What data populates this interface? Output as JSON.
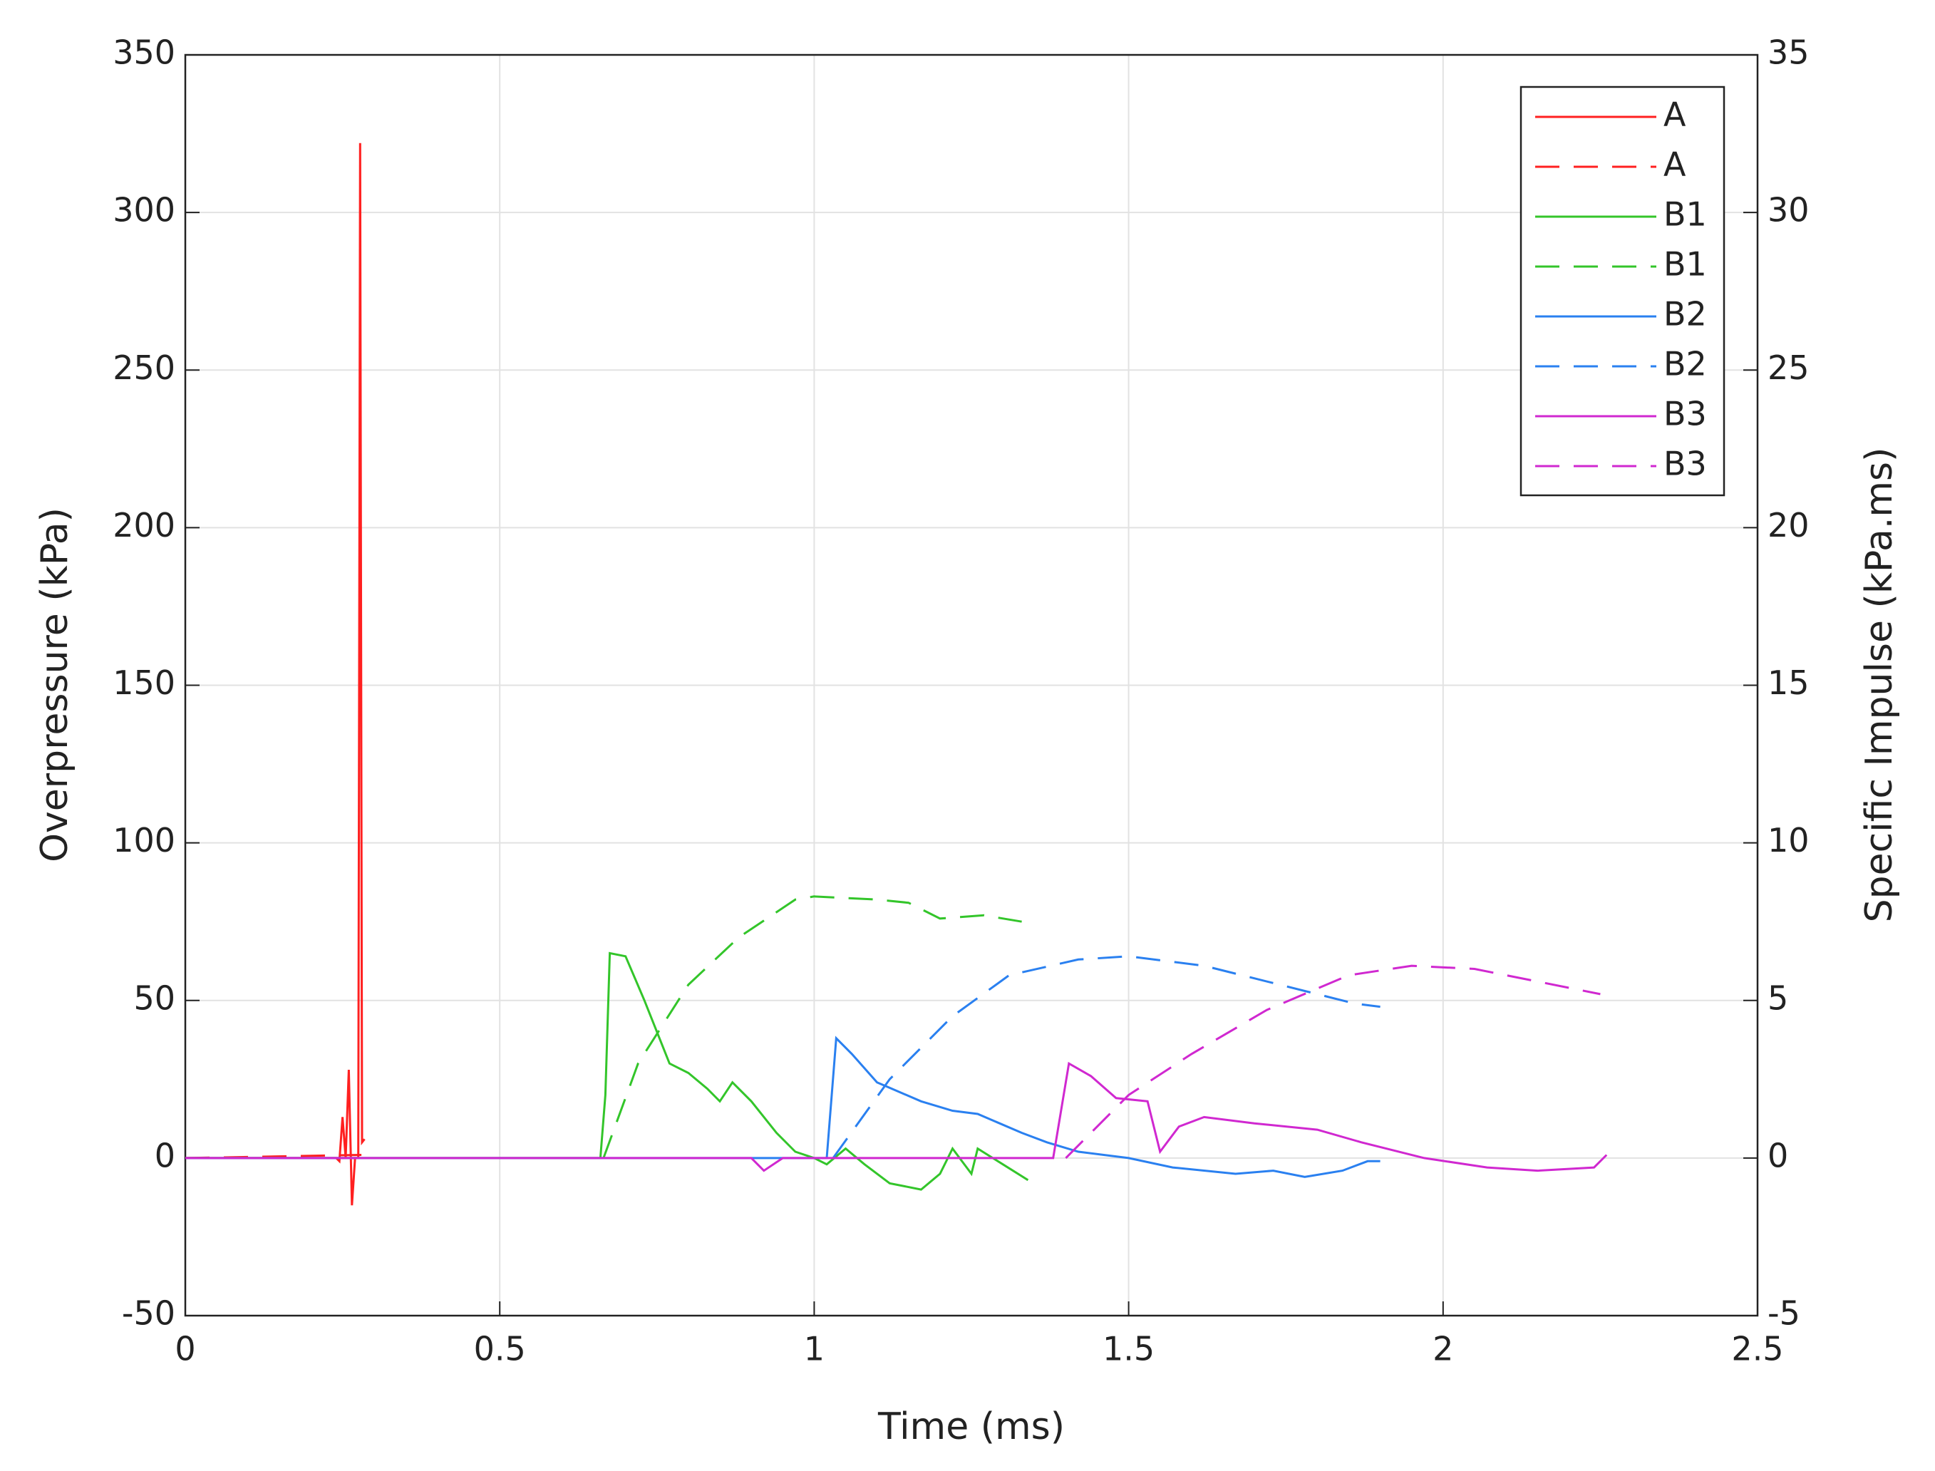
{
  "chart_data": {
    "type": "line",
    "xlabel": "Time (ms)",
    "ylabel": "Overpressure (kPa)",
    "y2label": "Specific Impulse (kPa.ms)",
    "xlim": [
      0,
      2.5
    ],
    "xticks": [
      0,
      0.5,
      1,
      1.5,
      2,
      2.5
    ],
    "ylim": [
      -50,
      350
    ],
    "yticks": [
      -50,
      0,
      50,
      100,
      150,
      200,
      250,
      300,
      350
    ],
    "y2lim": [
      -5,
      35
    ],
    "y2ticks": [
      -5,
      0,
      5,
      10,
      15,
      20,
      25,
      30,
      35
    ],
    "grid": true,
    "legend": "upper right",
    "series": [
      {
        "name": "A",
        "color": "#ff2020",
        "linestyle": "solid",
        "x": [
          0,
          0.24,
          0.245,
          0.25,
          0.255,
          0.26,
          0.265,
          0.27,
          0.275,
          0.278,
          0.281,
          0.285
        ],
        "values": [
          0,
          0,
          -1,
          13,
          0,
          28,
          -15,
          0,
          0,
          322,
          5,
          6
        ]
      },
      {
        "name": "A",
        "color": "#ff2020",
        "linestyle": "dashed",
        "axis": "y2",
        "x": [
          0,
          0.28
        ],
        "values": [
          0,
          0.1
        ]
      },
      {
        "name": "B1",
        "color": "#33c52a",
        "linestyle": "solid",
        "x": [
          0,
          0.66,
          0.668,
          0.675,
          0.7,
          0.73,
          0.77,
          0.8,
          0.83,
          0.85,
          0.87,
          0.9,
          0.94,
          0.97,
          1.0,
          1.02,
          1.05,
          1.08,
          1.12,
          1.17,
          1.2,
          1.22,
          1.25,
          1.26,
          1.3,
          1.34
        ],
        "values": [
          0,
          0,
          20,
          65,
          64,
          50,
          30,
          27,
          22,
          18,
          24,
          18,
          8,
          2,
          0,
          -2,
          3,
          -2,
          -8,
          -10,
          -5,
          3,
          -5,
          3,
          -2,
          -7
        ]
      },
      {
        "name": "B1",
        "color": "#33c52a",
        "linestyle": "dashed",
        "axis": "y2",
        "x": [
          0.665,
          0.72,
          0.8,
          0.88,
          0.97,
          1.0,
          1.1,
          1.15,
          1.2,
          1.27,
          1.33
        ],
        "values": [
          0,
          3,
          5.5,
          7,
          8.2,
          8.3,
          8.2,
          8.1,
          7.6,
          7.7,
          7.5
        ]
      },
      {
        "name": "B2",
        "color": "#2a80f0",
        "linestyle": "solid",
        "x": [
          0,
          1.02,
          1.035,
          1.06,
          1.1,
          1.17,
          1.22,
          1.26,
          1.33,
          1.37,
          1.42,
          1.5,
          1.57,
          1.67,
          1.73,
          1.78,
          1.84,
          1.88,
          1.9
        ],
        "values": [
          0,
          0,
          38,
          33,
          24,
          18,
          15,
          14,
          8,
          5,
          2,
          0,
          -3,
          -5,
          -4,
          -6,
          -4,
          -1,
          -1
        ]
      },
      {
        "name": "B2",
        "color": "#2a80f0",
        "linestyle": "dashed",
        "axis": "y2",
        "x": [
          1.03,
          1.12,
          1.22,
          1.31,
          1.42,
          1.5,
          1.62,
          1.74,
          1.86,
          1.9
        ],
        "values": [
          0,
          2.5,
          4.5,
          5.8,
          6.3,
          6.4,
          6.1,
          5.5,
          4.9,
          4.8
        ]
      },
      {
        "name": "B3",
        "color": "#d028d0",
        "linestyle": "solid",
        "x": [
          0,
          0.9,
          0.92,
          0.95,
          1.38,
          1.405,
          1.44,
          1.48,
          1.53,
          1.55,
          1.58,
          1.62,
          1.7,
          1.8,
          1.87,
          1.97,
          2.07,
          2.15,
          2.24,
          2.26
        ],
        "values": [
          0,
          0,
          -4,
          0,
          0,
          30,
          26,
          19,
          18,
          2,
          10,
          13,
          11,
          9,
          5,
          0,
          -3,
          -4,
          -3,
          1
        ]
      },
      {
        "name": "B3",
        "color": "#d028d0",
        "linestyle": "dashed",
        "axis": "y2",
        "x": [
          1.4,
          1.5,
          1.6,
          1.72,
          1.85,
          1.95,
          2.05,
          2.15,
          2.25
        ],
        "values": [
          0,
          2,
          3.3,
          4.7,
          5.8,
          6.1,
          6,
          5.6,
          5.2
        ]
      }
    ]
  }
}
